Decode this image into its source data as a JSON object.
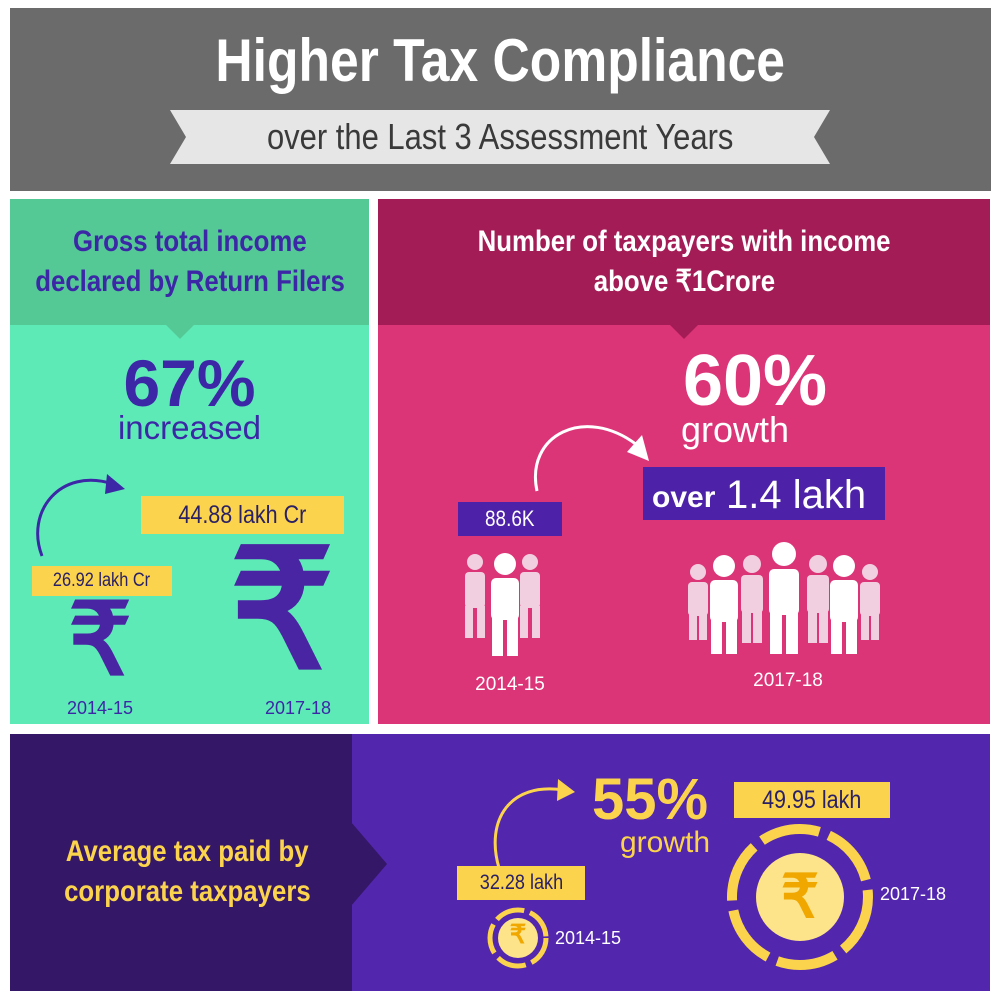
{
  "header": {
    "title": "Higher Tax Compliance",
    "subtitle": "over the Last 3 Assessment Years"
  },
  "income_panel": {
    "title_line1": "Gross total income",
    "title_line2": "declared by Return Filers",
    "percent": "67%",
    "percent_word": "increased",
    "value_2014": "26.92 lakh Cr",
    "value_2017": "44.88 lakh Cr",
    "rupee_symbol": "₹",
    "year_2014": "2014-15",
    "year_2017": "2017-18",
    "icon": "rupee-icon"
  },
  "taxpayers_panel": {
    "title_line1": "Number of taxpayers with income",
    "title_line2": "above ₹1Crore",
    "percent": "60%",
    "percent_word": "growth",
    "value_2014": "88.6K",
    "value_2017_prefix": "over",
    "value_2017": "1.4 lakh",
    "year_2014": "2014-15",
    "year_2017": "2017-18",
    "icon": "people-group-icon"
  },
  "corporate_panel": {
    "title_line1": "Average tax paid by",
    "title_line2": "corporate taxpayers",
    "percent": "55%",
    "percent_word": "growth",
    "value_2014": "32.28 lakh",
    "value_2017": "49.95 lakh",
    "rupee_symbol": "₹",
    "year_2014": "2014-15",
    "year_2017": "2017-18",
    "icon": "rupee-coin-icon"
  },
  "colors": {
    "header_bg": "#6b6b6b",
    "green_head": "#54c996",
    "green_body": "#5eeab7",
    "pink_head": "#a41c55",
    "pink_body": "#dc3577",
    "purple_dark": "#341767",
    "purple_body": "#5226ad",
    "yellow": "#fbd34d",
    "indigo_text": "#3c28a6"
  }
}
